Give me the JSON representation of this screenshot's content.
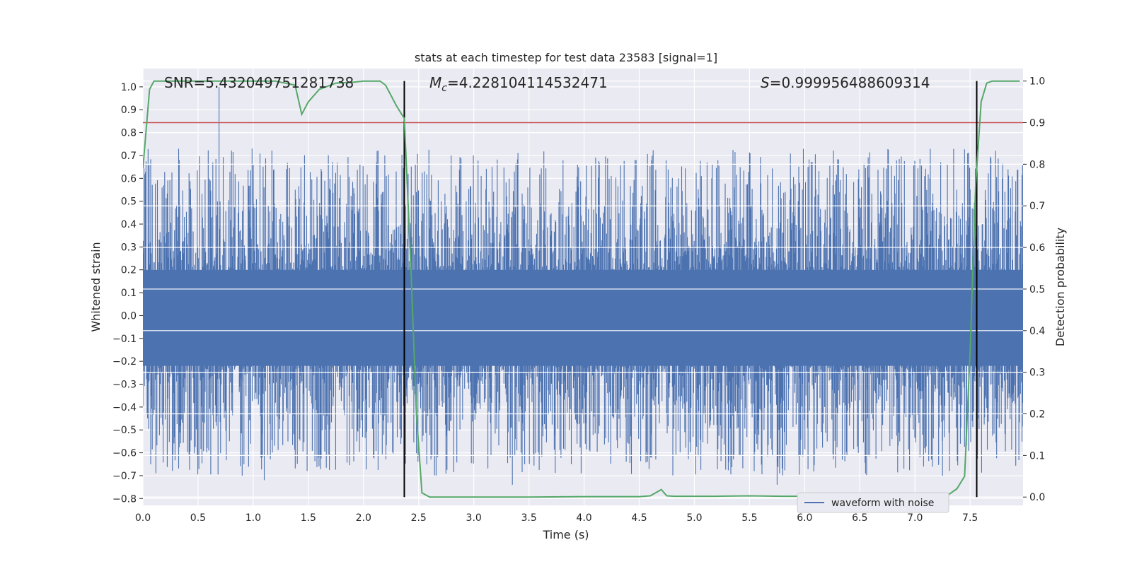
{
  "chart_data": {
    "type": "line",
    "title": "stats at each timestep for test data 23583 [signal=1]",
    "xlabel": "Time (s)",
    "ylabel": "Whitened strain",
    "ylabel_right": "Detection probability",
    "xlim": [
      0.0,
      7.98
    ],
    "ylim": [
      -0.83,
      1.08
    ],
    "ylim_right": [
      -0.02,
      1.03
    ],
    "x_ticks": [
      "0.0",
      "0.5",
      "1.0",
      "1.5",
      "2.0",
      "2.5",
      "3.0",
      "3.5",
      "4.0",
      "4.5",
      "5.0",
      "5.5",
      "6.0",
      "6.5",
      "7.0",
      "7.5"
    ],
    "y_ticks": [
      "−0.8",
      "−0.7",
      "−0.6",
      "−0.5",
      "−0.4",
      "−0.3",
      "−0.2",
      "−0.1",
      "0.0",
      "0.1",
      "0.2",
      "0.3",
      "0.4",
      "0.5",
      "0.6",
      "0.7",
      "0.8",
      "0.9",
      "1.0"
    ],
    "y_ticks_right": [
      "0.0",
      "0.1",
      "0.2",
      "0.3",
      "0.4",
      "0.5",
      "0.6",
      "0.7",
      "0.8",
      "0.9",
      "1.0"
    ],
    "grid": true,
    "legend_position": "lower-right",
    "annotations": {
      "snr": "SNR=5.432049751281738",
      "mc_symbol": "M",
      "mc_sub": "c",
      "mc_value": "=4.228104114532471",
      "s_symbol": "S",
      "s_value": "=0.999956488609314"
    },
    "vertical_lines_x": [
      2.37,
      7.56
    ],
    "threshold_right": 0.9,
    "series": [
      {
        "name": "waveform with noise",
        "axis": "left",
        "color": "#4c72b0",
        "spikes": [
          {
            "x": 0.69,
            "y": 1.0
          },
          {
            "x": 0.99,
            "y": 0.73
          },
          {
            "x": 1.1,
            "y": -0.72
          },
          {
            "x": 0.9,
            "y": -0.7
          },
          {
            "x": 3.35,
            "y": -0.74
          },
          {
            "x": 5.75,
            "y": -0.74
          },
          {
            "x": 7.25,
            "y": -0.7
          }
        ]
      },
      {
        "name": "",
        "axis": "right",
        "color": "#55a868",
        "x": [
          0.0,
          0.06,
          0.1,
          0.2,
          0.4,
          0.6,
          0.8,
          1.0,
          1.2,
          1.38,
          1.44,
          1.5,
          1.6,
          1.75,
          1.9,
          2.0,
          2.15,
          2.2,
          2.3,
          2.37,
          2.43,
          2.48,
          2.53,
          2.6,
          2.8,
          3.0,
          3.5,
          4.0,
          4.5,
          4.6,
          4.7,
          4.75,
          4.82,
          5.0,
          5.2,
          5.5,
          5.8,
          6.0,
          6.5,
          6.8,
          7.0,
          7.2,
          7.3,
          7.38,
          7.45,
          7.5,
          7.55,
          7.6,
          7.65,
          7.7,
          7.8,
          7.95
        ],
        "y": [
          0.79,
          0.98,
          1.0,
          1.0,
          1.0,
          1.0,
          1.0,
          1.0,
          1.0,
          0.99,
          0.92,
          0.95,
          0.98,
          0.995,
          0.997,
          1.0,
          1.0,
          0.99,
          0.94,
          0.91,
          0.55,
          0.2,
          0.01,
          0.0,
          0.0,
          0.0,
          0.0,
          0.001,
          0.001,
          0.003,
          0.018,
          0.003,
          0.002,
          0.002,
          0.002,
          0.003,
          0.002,
          0.002,
          0.002,
          0.003,
          0.002,
          0.002,
          0.005,
          0.02,
          0.05,
          0.35,
          0.75,
          0.95,
          0.995,
          1.0,
          1.0,
          1.0
        ]
      }
    ]
  }
}
